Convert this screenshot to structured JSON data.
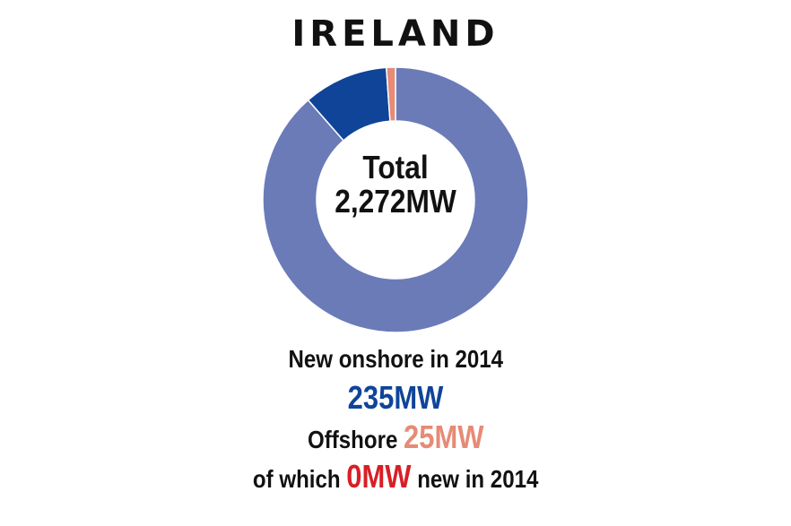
{
  "chart_data": {
    "type": "pie",
    "variant": "donut",
    "title": "IRELAND",
    "center_label_line1": "Total",
    "center_label_line2": "2,272MW",
    "total": 2272,
    "unit": "MW",
    "slices": [
      {
        "value": 2012,
        "color": "#6b7bb8"
      },
      {
        "value": 235,
        "color": "#0f4499"
      },
      {
        "value": 25,
        "color": "#e58b76"
      }
    ]
  },
  "notes": {
    "line1": "New onshore in 2014",
    "line2": "235MW",
    "line3_prefix": "Offshore",
    "line3_value": "25MW",
    "line4_prefix": "of which",
    "line4_value": "0MW",
    "line4_suffix": "new in 2014"
  },
  "colors": {
    "onshore_existing": "#6b7bb8",
    "onshore_new": "#0f4499",
    "offshore": "#e58b76",
    "offshore_new": "#d81f26",
    "separator": "#ffffff"
  }
}
